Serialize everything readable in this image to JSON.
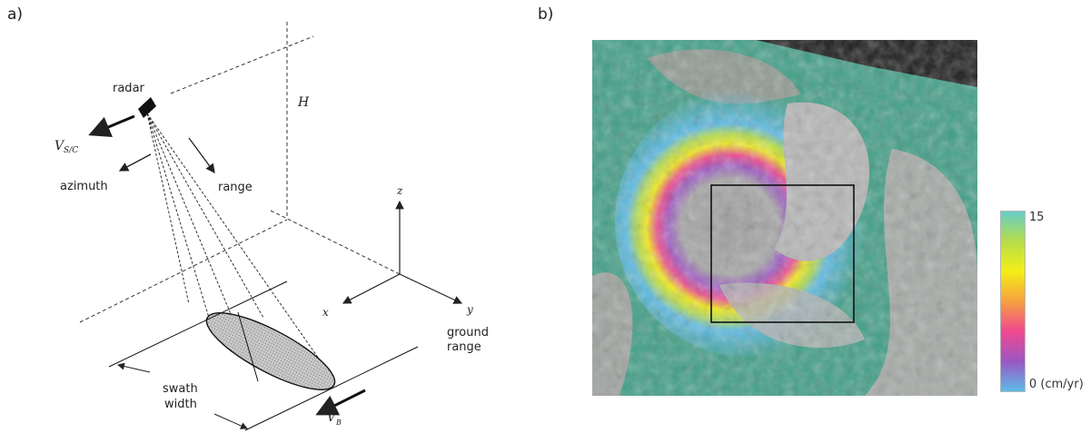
{
  "panels": {
    "a": {
      "label": "a)"
    },
    "b": {
      "label": "b)"
    }
  },
  "diagram": {
    "radar": "radar",
    "vsc_main": "V",
    "vsc_sub": "S/C",
    "azimuth": "azimuth",
    "range": "range",
    "height": "H",
    "axis_z": "z",
    "axis_x": "x",
    "axis_y": "y",
    "ground_range_1": "ground",
    "ground_range_2": "range",
    "swath_1": "swath",
    "swath_2": "width",
    "vb_main": "V",
    "vb_sub": "B"
  },
  "colorbar": {
    "max_label": "15",
    "min_label": "0 (cm/yr)",
    "colors": [
      "#66cdc8",
      "#b6dd4a",
      "#f4ee18",
      "#f6a040",
      "#f0488f",
      "#9b57c4",
      "#5bbbe8"
    ]
  }
}
